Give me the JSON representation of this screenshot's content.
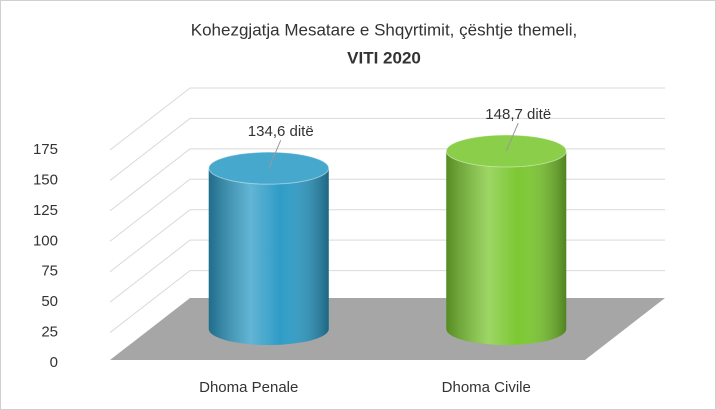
{
  "chart_data": {
    "type": "bar",
    "title": "Kohezgjatja Mesatare e Shqyrtimit, çështje themeli,",
    "subtitle": "VITI 2020",
    "categories": [
      "Dhoma Penale",
      "Dhoma Civile"
    ],
    "values": [
      134.6,
      148.7
    ],
    "value_labels": [
      "134,6 ditë",
      "148,7 ditë"
    ],
    "colors": [
      "#2e9cc6",
      "#7cc832"
    ],
    "ylim": [
      0,
      175
    ],
    "yticks": [
      0,
      25,
      50,
      75,
      100,
      125,
      150,
      175
    ],
    "grid": true
  }
}
